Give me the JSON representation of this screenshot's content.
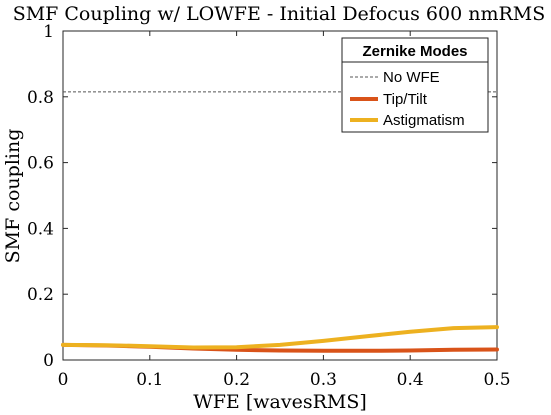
{
  "chart_data": {
    "type": "line",
    "title": "SMF Coupling w/ LOWFE - Initial Defocus 600 nmRMS",
    "xlabel": "WFE [wavesRMS]",
    "ylabel": "SMF coupling",
    "xlim": [
      0,
      0.5
    ],
    "ylim": [
      0,
      1
    ],
    "xticks": [
      0,
      0.1,
      0.2,
      0.3,
      0.4,
      0.5
    ],
    "xtick_labels": [
      "0",
      "0.1",
      "0.2",
      "0.3",
      "0.4",
      "0.5"
    ],
    "yticks": [
      0,
      0.2,
      0.4,
      0.6,
      0.8,
      1
    ],
    "ytick_labels": [
      "0",
      "0.2",
      "0.4",
      "0.6",
      "0.8",
      "1"
    ],
    "grid": false,
    "legend": {
      "title": "Zernike Modes",
      "placement": "top-right"
    },
    "series": [
      {
        "name": "No WFE",
        "style": "dashed",
        "color": "#555555",
        "x": [
          0,
          0.5
        ],
        "y": [
          0.815,
          0.815
        ]
      },
      {
        "name": "Tip/Tilt",
        "style": "solid",
        "color": "#D95319",
        "x": [
          0,
          0.05,
          0.1,
          0.15,
          0.2,
          0.25,
          0.3,
          0.35,
          0.4,
          0.45,
          0.5
        ],
        "y": [
          0.046,
          0.044,
          0.04,
          0.035,
          0.031,
          0.029,
          0.028,
          0.028,
          0.029,
          0.031,
          0.032
        ]
      },
      {
        "name": "Astigmatism",
        "style": "solid",
        "color": "#EDB120",
        "x": [
          0,
          0.05,
          0.1,
          0.15,
          0.2,
          0.25,
          0.3,
          0.35,
          0.4,
          0.45,
          0.5
        ],
        "y": [
          0.046,
          0.045,
          0.042,
          0.038,
          0.039,
          0.046,
          0.058,
          0.072,
          0.086,
          0.097,
          0.1
        ]
      }
    ]
  }
}
